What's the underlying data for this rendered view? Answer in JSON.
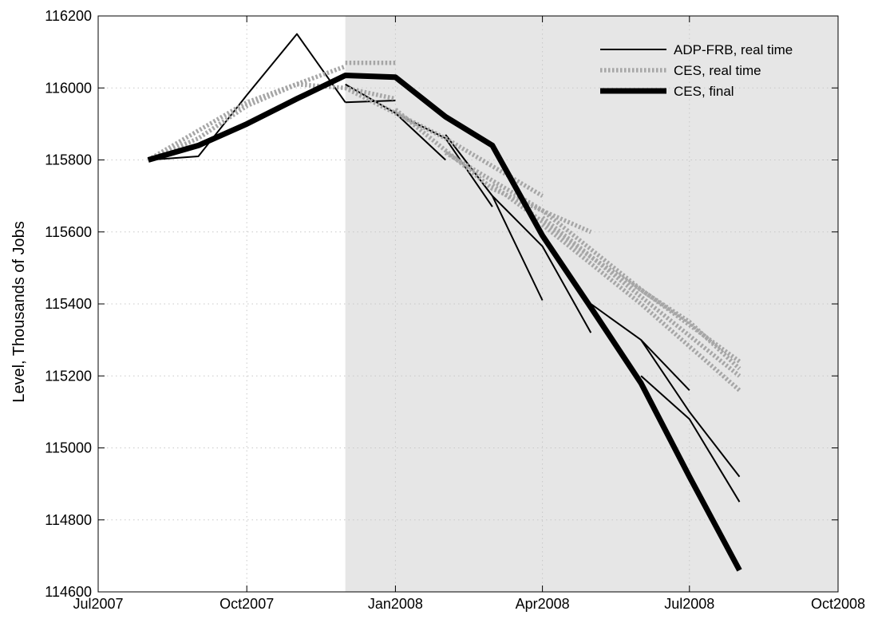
{
  "chart_data": {
    "type": "line",
    "ylabel": "Level, Thousands of Jobs",
    "xlabel": "",
    "x_axis": {
      "range": [
        "2007-07-01",
        "2008-10-01"
      ],
      "ticks": [
        {
          "date": "2007-07-01",
          "label": "Jul2007"
        },
        {
          "date": "2007-10-01",
          "label": "Oct2007"
        },
        {
          "date": "2008-01-01",
          "label": "Jan2008"
        },
        {
          "date": "2008-04-01",
          "label": "Apr2008"
        },
        {
          "date": "2008-07-01",
          "label": "Jul2008"
        },
        {
          "date": "2008-10-01",
          "label": "Oct2008"
        }
      ]
    },
    "y_axis": {
      "range": [
        114600,
        116200
      ],
      "ticks": [
        114600,
        114800,
        115000,
        115200,
        115400,
        115600,
        115800,
        116000,
        116200
      ]
    },
    "grid": true,
    "shaded_region": {
      "from": "2007-12-01",
      "to": "2008-10-01",
      "color": "#e6e6e6"
    },
    "legend": {
      "position": "top-right",
      "entries": [
        {
          "label": "ADP-FRB, real time",
          "series": "adp"
        },
        {
          "label": "CES, real time",
          "series": "ces_rt"
        },
        {
          "label": "CES, final",
          "series": "ces_final"
        }
      ]
    },
    "series": [
      {
        "id": "adp",
        "style": "thin-solid",
        "color": "#000000",
        "lines": [
          {
            "x": [
              "2007-08-01",
              "2007-09-01",
              "2007-10-01",
              "2007-11-01",
              "2007-12-01"
            ],
            "y": [
              115800,
              115810,
              115980,
              116150,
              115960
            ]
          },
          {
            "x": [
              "2007-12-01",
              "2008-01-01",
              "2008-02-01"
            ],
            "y": [
              116010,
              115930,
              115800
            ]
          },
          {
            "x": [
              "2007-12-01",
              "2008-01-01"
            ],
            "y": [
              115960,
              115965
            ]
          },
          {
            "x": [
              "2008-01-01",
              "2008-02-01",
              "2008-03-01"
            ],
            "y": [
              115930,
              115860,
              115670
            ]
          },
          {
            "x": [
              "2008-02-01",
              "2008-03-01",
              "2008-04-01"
            ],
            "y": [
              115870,
              115700,
              115410
            ]
          },
          {
            "x": [
              "2008-03-01",
              "2008-04-01",
              "2008-05-01"
            ],
            "y": [
              115700,
              115560,
              115320
            ]
          },
          {
            "x": [
              "2008-05-01",
              "2008-06-01",
              "2008-07-01"
            ],
            "y": [
              115400,
              115300,
              115160
            ]
          },
          {
            "x": [
              "2008-06-01",
              "2008-07-01",
              "2008-08-01"
            ],
            "y": [
              115300,
              115100,
              114920
            ]
          },
          {
            "x": [
              "2008-06-01",
              "2008-07-01",
              "2008-08-01"
            ],
            "y": [
              115200,
              115080,
              114850
            ]
          }
        ]
      },
      {
        "id": "ces_rt",
        "style": "thick-dotted",
        "color": "#a6a6a6",
        "lines": [
          {
            "x": [
              "2007-08-01",
              "2007-10-01",
              "2007-12-01"
            ],
            "y": [
              115800,
              115960,
              116060
            ]
          },
          {
            "x": [
              "2007-12-01",
              "2008-01-01"
            ],
            "y": [
              116070,
              116070
            ]
          },
          {
            "x": [
              "2007-08-01",
              "2007-09-01",
              "2007-10-01",
              "2007-11-01",
              "2007-12-01",
              "2008-01-01"
            ],
            "y": [
              115800,
              115860,
              115950,
              116010,
              116000,
              115970
            ]
          },
          {
            "x": [
              "2007-12-01",
              "2008-02-01",
              "2008-04-01"
            ],
            "y": [
              116000,
              115860,
              115700
            ]
          },
          {
            "x": [
              "2008-01-01",
              "2008-03-01",
              "2008-05-01"
            ],
            "y": [
              115940,
              115720,
              115600
            ]
          },
          {
            "x": [
              "2008-02-01",
              "2008-04-01",
              "2008-06-01",
              "2008-08-01"
            ],
            "y": [
              115820,
              115660,
              115440,
              115240
            ]
          },
          {
            "x": [
              "2008-03-01",
              "2008-05-01",
              "2008-07-01",
              "2008-08-01"
            ],
            "y": [
              115730,
              115530,
              115350,
              115220
            ]
          },
          {
            "x": [
              "2008-04-01",
              "2008-06-01",
              "2008-08-01"
            ],
            "y": [
              115640,
              115420,
              115200
            ]
          },
          {
            "x": [
              "2008-04-01",
              "2008-06-01",
              "2008-08-01"
            ],
            "y": [
              115620,
              115400,
              115160
            ]
          }
        ]
      },
      {
        "id": "ces_final",
        "style": "very-thick-solid",
        "color": "#000000",
        "lines": [
          {
            "x": [
              "2007-08-01",
              "2007-09-01",
              "2007-10-01",
              "2007-11-01",
              "2007-12-01",
              "2008-01-01",
              "2008-02-01",
              "2008-03-01",
              "2008-04-01",
              "2008-05-01",
              "2008-06-01",
              "2008-07-01",
              "2008-08-01"
            ],
            "y": [
              115800,
              115840,
              115900,
              115970,
              116035,
              116030,
              115920,
              115840,
              115590,
              115390,
              115180,
              114920,
              114660
            ]
          }
        ]
      }
    ]
  }
}
